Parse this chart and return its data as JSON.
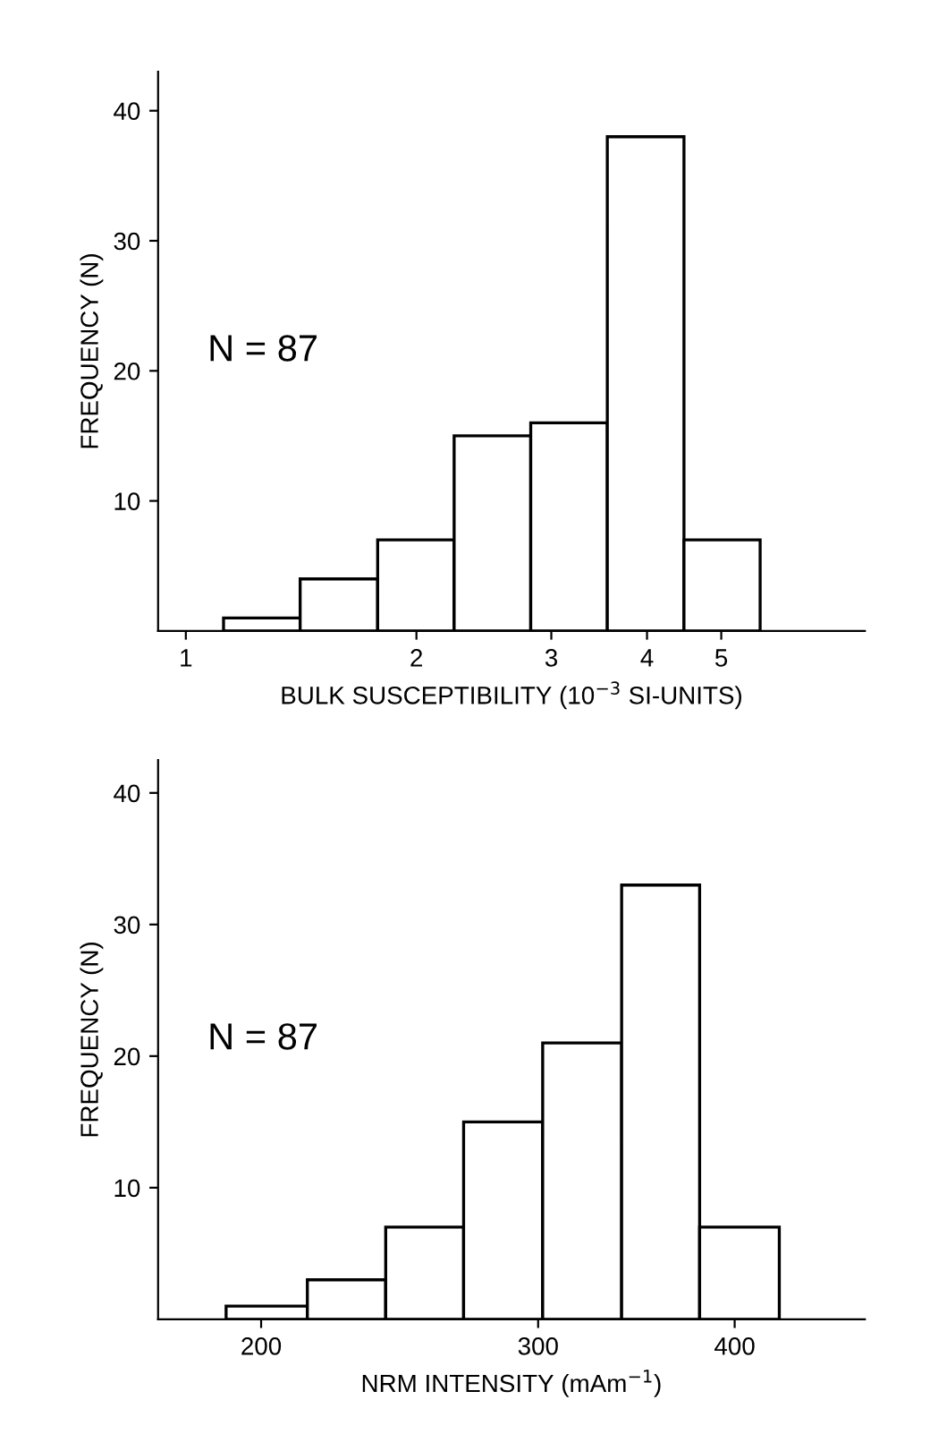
{
  "chart_data": [
    {
      "type": "histogram",
      "xlabel": "BULK SUSCEPTIBILITY (10$^{−3}$ SI-UNITS)",
      "ylabel": "FREQUENCY (N)",
      "annotations": [
        "N = 87"
      ],
      "log": "x",
      "bins": [
        1.12,
        1.41,
        1.78,
        2.24,
        2.82,
        3.55,
        4.47,
        5.62
      ],
      "values": [
        1,
        4,
        7,
        15,
        16,
        38,
        7
      ],
      "color": "#ffffff",
      "xlim": [
        0.92,
        7.7
      ],
      "xticks": [
        1,
        2,
        3,
        4,
        5
      ],
      "ylim": [
        0,
        43
      ],
      "yticks": [
        10,
        20,
        30,
        40
      ],
      "grid": false
    },
    {
      "type": "histogram",
      "xlabel": "NRM INTENSITY (mAm$^{−1}$)",
      "ylabel": "FREQUENCY (N)",
      "annotations": [
        "N = 87"
      ],
      "log": "x",
      "bins": [
        190,
        214,
        240,
        269,
        302,
        339,
        380,
        427
      ],
      "values": [
        1,
        3,
        7,
        15,
        21,
        33,
        7
      ],
      "color": "#ffffff",
      "xlim": [
        172,
        484
      ],
      "xticks": [
        200,
        300,
        400
      ],
      "ylim": [
        0,
        42.5
      ],
      "yticks": [
        10,
        20,
        30,
        40
      ],
      "grid": false
    }
  ]
}
